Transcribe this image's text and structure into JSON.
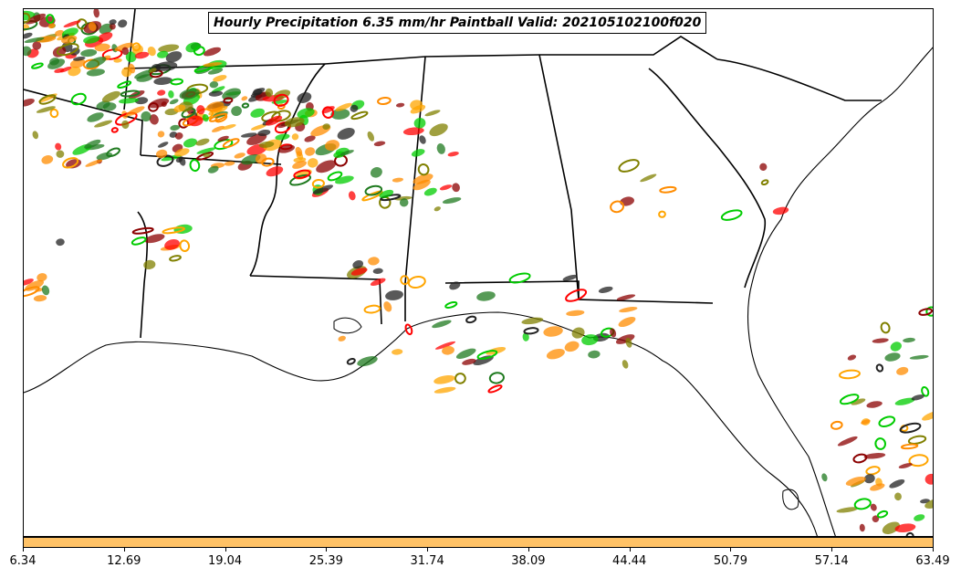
{
  "title": "Hourly Precipitation 6.35 mm/hr Paintball Valid: 202105102100f020",
  "colorbar": {
    "color": "#ffc266",
    "tick_labels": [
      "6.34",
      "12.69",
      "19.04",
      "25.39",
      "31.74",
      "38.09",
      "44.44",
      "50.79",
      "57.14",
      "63.49"
    ]
  },
  "palette": {
    "orange": "#ff8c00",
    "light-orange": "#ffa500",
    "red": "#ff0000",
    "dark-red": "#8b0000",
    "green": "#00cc00",
    "dark-green": "#1f7a1f",
    "olive": "#808000",
    "black": "#222222"
  }
}
